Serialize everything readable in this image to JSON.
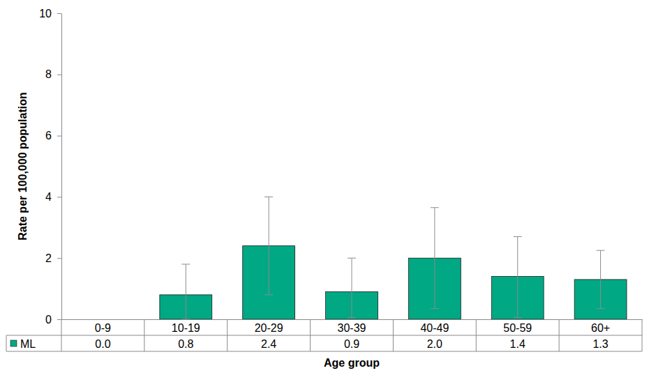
{
  "chart_data": {
    "type": "bar",
    "x_label": "Age group",
    "y_label": "Rate per 100,000 population",
    "categories": [
      "0-9",
      "10-19",
      "20-29",
      "30-39",
      "40-49",
      "50-59",
      "60+"
    ],
    "series": [
      {
        "name": "ML",
        "color": "#00a884",
        "values": [
          0.0,
          0.8,
          2.4,
          0.9,
          2.0,
          1.4,
          1.3
        ],
        "value_labels": [
          "0.0",
          "0.8",
          "2.4",
          "0.9",
          "2.0",
          "1.4",
          "1.3"
        ],
        "error_low": [
          null,
          0.0,
          0.8,
          0.05,
          0.35,
          0.05,
          0.35
        ],
        "error_high": [
          null,
          1.8,
          4.0,
          2.0,
          3.65,
          2.7,
          2.25
        ]
      }
    ],
    "ylim": [
      0,
      10
    ],
    "yticks": [
      0,
      2,
      4,
      6,
      8,
      10
    ],
    "grid": false
  }
}
